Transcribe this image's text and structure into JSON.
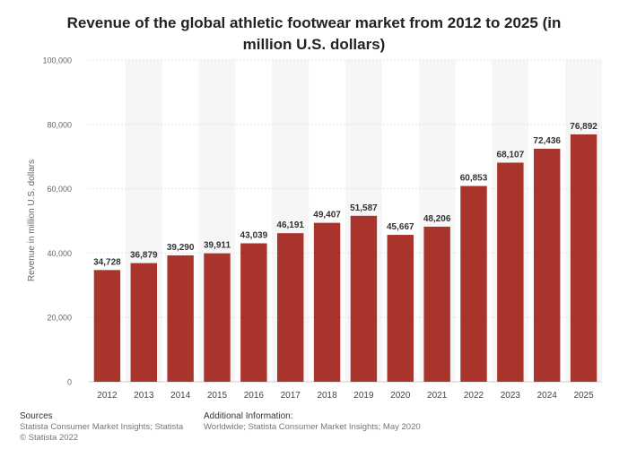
{
  "chart_data": {
    "type": "bar",
    "title": "Revenue of the global athletic footwear market from 2012 to 2025 (in million U.S. dollars)",
    "xlabel": "",
    "ylabel": "Revenue in million U.S. dollars",
    "ylim": [
      0,
      100000
    ],
    "yticks": [
      "0",
      "20,000",
      "40,000",
      "60,000",
      "80,000",
      "100,000"
    ],
    "ytick_values": [
      0,
      20000,
      40000,
      60000,
      80000,
      100000
    ],
    "categories": [
      "2012",
      "2013",
      "2014",
      "2015",
      "2016",
      "2017",
      "2018",
      "2019",
      "2020",
      "2021",
      "2022",
      "2023",
      "2024",
      "2025"
    ],
    "values": [
      34728,
      36879,
      39290,
      39911,
      43039,
      46191,
      49407,
      51587,
      45667,
      48206,
      60853,
      68107,
      72436,
      76892
    ],
    "value_labels": [
      "34,728",
      "36,879",
      "39,290",
      "39,911",
      "43,039",
      "46,191",
      "49,407",
      "51,587",
      "45,667",
      "48,206",
      "60,853",
      "68,107",
      "72,436",
      "76,892"
    ],
    "bar_color": "#a9342c",
    "band_color": "#f6f6f6",
    "grid": true,
    "legend": "none"
  },
  "footer": {
    "sources_heading": "Sources",
    "sources_line1": "Statista Consumer Market Insights; Statista",
    "sources_line2": "© Statista 2022",
    "info_heading": "Additional Information:",
    "info_text": "Worldwide; Statista Consumer Market Insights; May 2020"
  }
}
